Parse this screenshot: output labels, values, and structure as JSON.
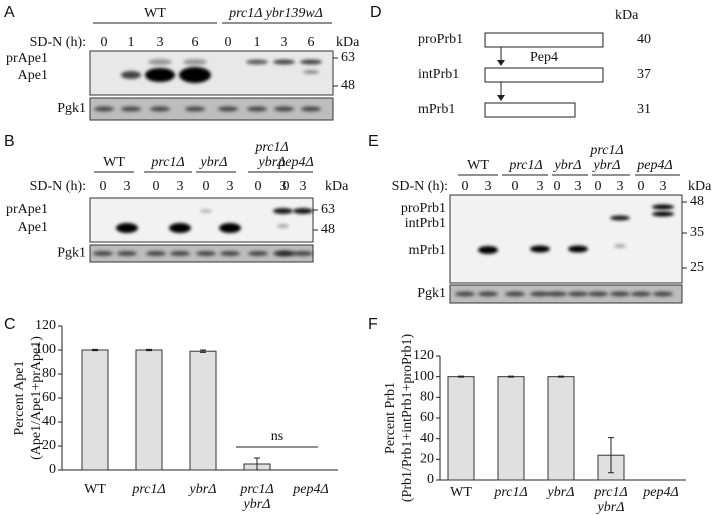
{
  "blot_a": {
    "label": "A",
    "groups": [
      "WT",
      "prc1Δ ybr139wΔ"
    ],
    "time_label": "SD-N (h):",
    "times": [
      "0",
      "1",
      "3",
      "6",
      "0",
      "1",
      "3",
      "6"
    ],
    "unit": "kDa",
    "bands": [
      "prApe1",
      "Ape1"
    ],
    "markers": [
      "63",
      "48"
    ],
    "loading": "Pgk1"
  },
  "blot_b": {
    "label": "B",
    "groups": [
      "WT",
      "prc1Δ",
      "ybrΔ",
      "prc1Δ ybrΔ",
      "pep4Δ"
    ],
    "time_label": "SD-N (h):",
    "times": [
      "0",
      "3",
      "0",
      "3",
      "0",
      "3",
      "0",
      "3",
      "0",
      "3"
    ],
    "unit": "kDa",
    "bands": [
      "prApe1",
      "Ape1"
    ],
    "markers": [
      "63",
      "48"
    ],
    "loading": "Pgk1"
  },
  "diagram_d": {
    "label": "D",
    "unit": "kDa",
    "forms": [
      {
        "name": "proPrb1",
        "size": "40"
      },
      {
        "name": "intPrb1",
        "size": "37"
      },
      {
        "name": "mPrb1",
        "size": "31"
      }
    ],
    "enzyme": "Pep4"
  },
  "blot_e": {
    "label": "E",
    "groups": [
      "WT",
      "prc1Δ",
      "ybrΔ",
      "prc1Δ ybrΔ",
      "pep4Δ"
    ],
    "time_label": "SD-N (h):",
    "times": [
      "0",
      "3",
      "0",
      "3",
      "0",
      "3",
      "0",
      "3",
      "0",
      "3"
    ],
    "unit": "kDa",
    "bands": [
      "proPrb1",
      "intPrb1",
      "mPrb1"
    ],
    "markers": [
      "48",
      "35",
      "25"
    ],
    "loading": "Pgk1"
  },
  "chart_data": [
    {
      "type": "bar",
      "label": "C",
      "ylabel": [
        "Percent Ape1",
        "(Ape1/Ape1+prApe1)"
      ],
      "categories": [
        "WT",
        "prc1Δ",
        "ybrΔ",
        "prc1Δ ybrΔ",
        "pep4Δ"
      ],
      "values": [
        100,
        100,
        99,
        5,
        0
      ],
      "errors": [
        0.5,
        0.5,
        1,
        5,
        0
      ],
      "color": "#e0e0e0",
      "ylim": [
        0,
        120
      ],
      "yticks": [
        0,
        20,
        40,
        60,
        80,
        100,
        120
      ],
      "annotations": [
        "ns"
      ]
    },
    {
      "type": "bar",
      "label": "F",
      "ylabel": [
        "Percent Prb1",
        "(Prb1/Prb1+intPrb1+proPrb1)"
      ],
      "categories": [
        "WT",
        "prc1Δ",
        "ybrΔ",
        "prc1Δ ybrΔ",
        "pep4Δ"
      ],
      "values": [
        100,
        100,
        100,
        24,
        0
      ],
      "errors": [
        0.5,
        0.5,
        0.5,
        17,
        0
      ],
      "color": "#e0e0e0",
      "ylim": [
        0,
        120
      ],
      "yticks": [
        0,
        20,
        40,
        60,
        80,
        100,
        120
      ]
    }
  ]
}
